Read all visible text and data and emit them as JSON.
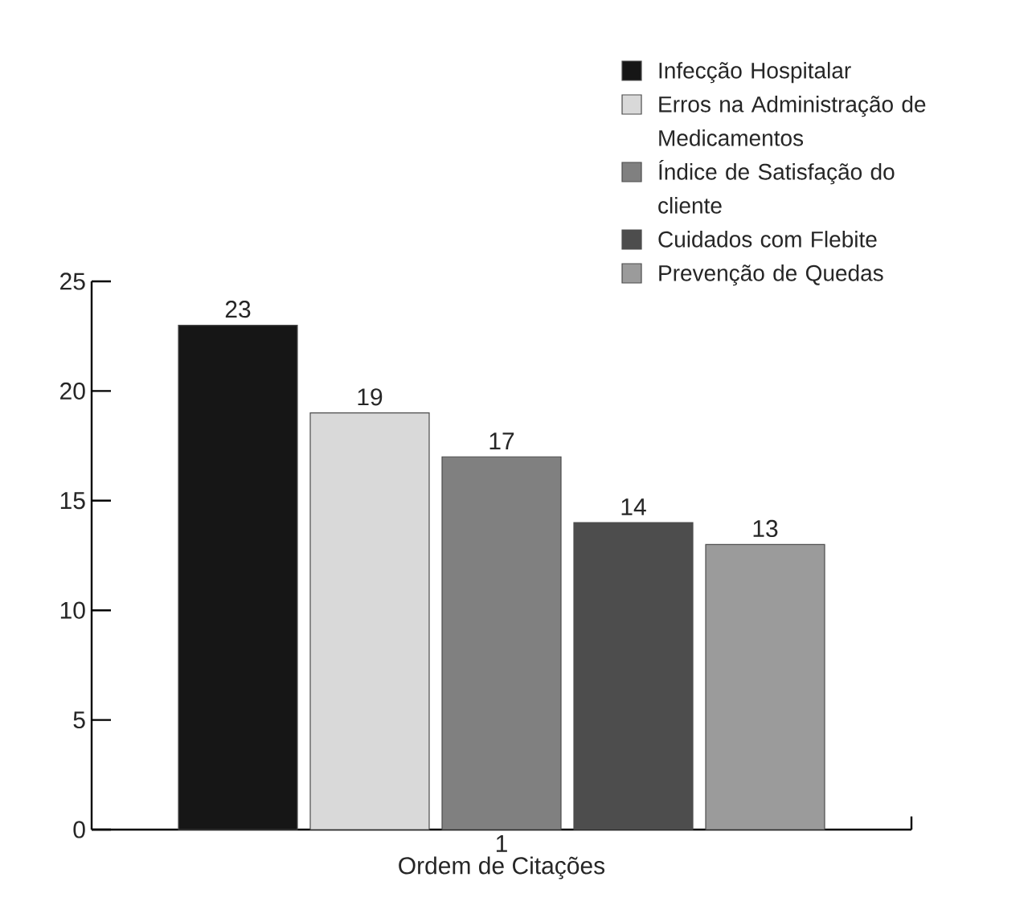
{
  "chart_data": {
    "type": "bar",
    "xlabel": "Ordem de Citações",
    "categories": [
      "1"
    ],
    "series": [
      {
        "name": "Infecção Hospitalar",
        "color": "#161616",
        "values": [
          23
        ]
      },
      {
        "name": "Erros na Administração de Medicamentos",
        "color": "#d9d9d9",
        "values": [
          19
        ]
      },
      {
        "name": "Índice de Satisfação do cliente",
        "color": "#808080",
        "values": [
          17
        ]
      },
      {
        "name": "Cuidados com Flebite",
        "color": "#4d4d4d",
        "values": [
          14
        ]
      },
      {
        "name": "Prevenção de Quedas",
        "color": "#9b9b9b",
        "values": [
          13
        ]
      }
    ],
    "ylim": [
      0,
      25
    ],
    "yticks": [
      0,
      5,
      10,
      15,
      20,
      25
    ],
    "data_labels": true,
    "legend": "top right"
  }
}
